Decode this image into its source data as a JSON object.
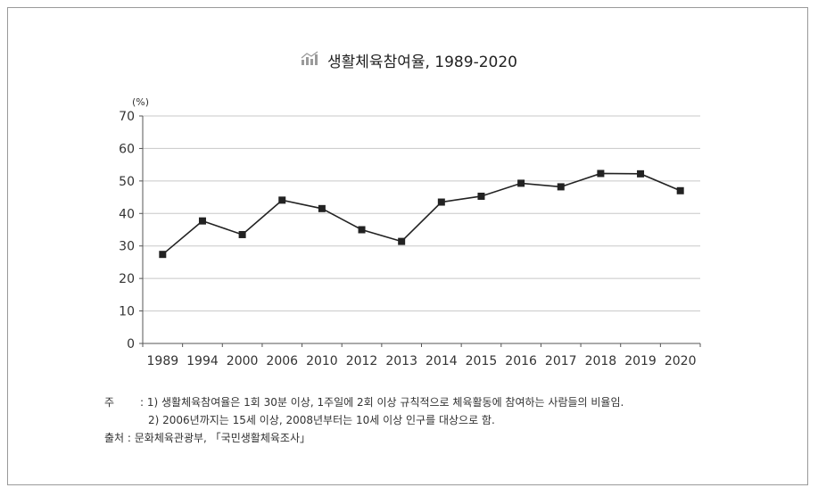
{
  "chart_data": {
    "type": "line",
    "title": "생활체육참여율, 1989-2020",
    "ylabel": "(%)",
    "xlabel": "",
    "ylim": [
      0,
      70
    ],
    "yticks": [
      0,
      10,
      20,
      30,
      40,
      50,
      60,
      70
    ],
    "grid": true,
    "categories": [
      "1989",
      "1994",
      "2000",
      "2006",
      "2010",
      "2012",
      "2013",
      "2014",
      "2015",
      "2016",
      "2017",
      "2018",
      "2019",
      "2020"
    ],
    "values": [
      27.4,
      37.7,
      33.5,
      44.1,
      41.5,
      35.0,
      31.4,
      43.5,
      45.3,
      49.3,
      48.2,
      52.3,
      52.2,
      47.0
    ],
    "marker": "square",
    "line_color": "#222222"
  },
  "title_icon": "bar-chart-icon",
  "notes": {
    "label_note": "주",
    "note1": ": 1) 생활체육참여율은 1회 30분 이상, 1주일에 2회 이상 규칙적으로 체육활동에 참여하는 사람들의 비율임.",
    "note2": "2) 2006년까지는 15세 이상, 2008년부터는 10세 이상 인구를 대상으로 함.",
    "source": "출처 : 문화체육관광부, 「국민생활체육조사」"
  }
}
